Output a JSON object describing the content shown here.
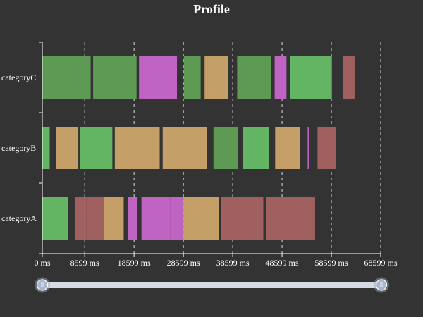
{
  "chart_data": {
    "type": "profile",
    "title": "Profile",
    "xlim": [
      0,
      68599
    ],
    "x_tick_values": [
      0,
      8599,
      18599,
      28599,
      38599,
      48599,
      58599,
      68599
    ],
    "x_tick_labels": [
      "0 ms",
      "8599 ms",
      "18599 ms",
      "28599 ms",
      "38599 ms",
      "48599 ms",
      "58599 ms",
      "68599 ms"
    ],
    "categories": [
      "categoryA",
      "categoryB",
      "categoryC"
    ],
    "grid": "vertical dashed",
    "data_zoom": {
      "start": 0,
      "end": 100
    },
    "colors": {
      "green_dark": "#5f9a55",
      "green_light": "#63b563",
      "violet": "#c064c3",
      "tan": "#c4a068",
      "rose": "#a06060"
    },
    "segments": [
      {
        "category": "categoryA",
        "start": 0,
        "end": 5200,
        "color": "green_light"
      },
      {
        "category": "categoryA",
        "start": 6600,
        "end": 8900,
        "color": "rose"
      },
      {
        "category": "categoryA",
        "start": 8900,
        "end": 12500,
        "color": "rose"
      },
      {
        "category": "categoryA",
        "start": 12500,
        "end": 16500,
        "color": "tan"
      },
      {
        "category": "categoryA",
        "start": 17400,
        "end": 19300,
        "color": "violet"
      },
      {
        "category": "categoryA",
        "start": 20100,
        "end": 25900,
        "color": "violet"
      },
      {
        "category": "categoryA",
        "start": 25900,
        "end": 28600,
        "color": "violet"
      },
      {
        "category": "categoryA",
        "start": 28600,
        "end": 35800,
        "color": "tan"
      },
      {
        "category": "categoryA",
        "start": 36200,
        "end": 44800,
        "color": "rose"
      },
      {
        "category": "categoryA",
        "start": 45300,
        "end": 55300,
        "color": "rose"
      },
      {
        "category": "categoryB",
        "start": 0,
        "end": 1500,
        "color": "green_light"
      },
      {
        "category": "categoryB",
        "start": 2800,
        "end": 7300,
        "color": "tan"
      },
      {
        "category": "categoryB",
        "start": 7600,
        "end": 14200,
        "color": "green_light"
      },
      {
        "category": "categoryB",
        "start": 14700,
        "end": 23800,
        "color": "tan"
      },
      {
        "category": "categoryB",
        "start": 24400,
        "end": 33300,
        "color": "tan"
      },
      {
        "category": "categoryB",
        "start": 34700,
        "end": 39600,
        "color": "green_dark"
      },
      {
        "category": "categoryB",
        "start": 40600,
        "end": 45900,
        "color": "green_light"
      },
      {
        "category": "categoryB",
        "start": 47200,
        "end": 52300,
        "color": "tan"
      },
      {
        "category": "categoryB",
        "start": 53800,
        "end": 54100,
        "color": "violet"
      },
      {
        "category": "categoryB",
        "start": 55800,
        "end": 59500,
        "color": "rose"
      },
      {
        "category": "categoryC",
        "start": 0,
        "end": 9800,
        "color": "green_dark"
      },
      {
        "category": "categoryC",
        "start": 10300,
        "end": 19100,
        "color": "green_dark"
      },
      {
        "category": "categoryC",
        "start": 19600,
        "end": 27300,
        "color": "violet"
      },
      {
        "category": "categoryC",
        "start": 28700,
        "end": 32100,
        "color": "green_dark"
      },
      {
        "category": "categoryC",
        "start": 32900,
        "end": 37600,
        "color": "tan"
      },
      {
        "category": "categoryC",
        "start": 39500,
        "end": 46300,
        "color": "green_dark"
      },
      {
        "category": "categoryC",
        "start": 47100,
        "end": 49500,
        "color": "violet"
      },
      {
        "category": "categoryC",
        "start": 50300,
        "end": 58700,
        "color": "green_light"
      },
      {
        "category": "categoryC",
        "start": 61000,
        "end": 63300,
        "color": "rose"
      }
    ]
  }
}
